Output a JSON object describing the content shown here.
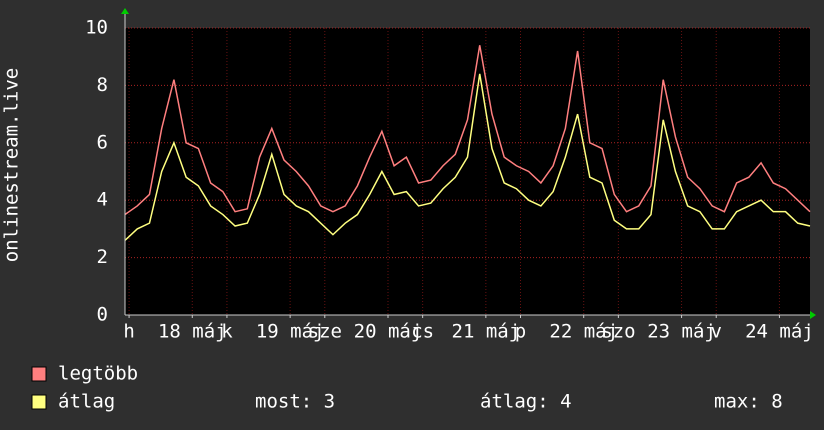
{
  "chart_data": {
    "type": "line",
    "ylabel": "onlinestream.live",
    "x": [
      0,
      3,
      6,
      9,
      12,
      15,
      18,
      21,
      24,
      27,
      30,
      33,
      36,
      39,
      42,
      45,
      48,
      51,
      54,
      57,
      60,
      63,
      66,
      69,
      72,
      75,
      78,
      81,
      84,
      87,
      90,
      93,
      96,
      99,
      102,
      105,
      108,
      111,
      114,
      117,
      120,
      123,
      126,
      129,
      132,
      135,
      138,
      141,
      144,
      147,
      150,
      153,
      156,
      159,
      162,
      165,
      168
    ],
    "series": [
      {
        "name": "legtöbb",
        "color": "#ff7f7f",
        "values": [
          3.5,
          3.8,
          4.2,
          6.5,
          8.2,
          6.0,
          5.8,
          4.6,
          4.3,
          3.6,
          3.7,
          5.5,
          6.5,
          5.4,
          5.0,
          4.5,
          3.8,
          3.6,
          3.8,
          4.5,
          5.5,
          6.4,
          5.2,
          5.5,
          4.6,
          4.7,
          5.2,
          5.6,
          6.8,
          9.4,
          7.0,
          5.5,
          5.2,
          5.0,
          4.6,
          5.2,
          6.5,
          9.2,
          6.0,
          5.8,
          4.2,
          3.6,
          3.8,
          4.5,
          8.2,
          6.2,
          4.8,
          4.4,
          3.8,
          3.6,
          4.6,
          4.8,
          5.3,
          4.6,
          4.4,
          4.0,
          3.6
        ]
      },
      {
        "name": "átlag",
        "color": "#ffff80",
        "values": [
          2.6,
          3.0,
          3.2,
          5.0,
          6.0,
          4.8,
          4.5,
          3.8,
          3.5,
          3.1,
          3.2,
          4.2,
          5.6,
          4.2,
          3.8,
          3.6,
          3.2,
          2.8,
          3.2,
          3.5,
          4.2,
          5.0,
          4.2,
          4.3,
          3.8,
          3.9,
          4.4,
          4.8,
          5.5,
          8.4,
          5.8,
          4.6,
          4.4,
          4.0,
          3.8,
          4.3,
          5.5,
          7.0,
          4.8,
          4.6,
          3.3,
          3.0,
          3.0,
          3.5,
          6.8,
          5.0,
          3.8,
          3.6,
          3.0,
          3.0,
          3.6,
          3.8,
          4.0,
          3.6,
          3.6,
          3.2,
          3.1
        ]
      }
    ],
    "xlim": [
      0,
      168
    ],
    "xticks": [
      {
        "value": 1,
        "label": "h"
      },
      {
        "value": 16.5,
        "label": "18 máj"
      },
      {
        "value": 25,
        "label": "k"
      },
      {
        "value": 40.5,
        "label": "19 máj"
      },
      {
        "value": 49,
        "label": "sze"
      },
      {
        "value": 64.5,
        "label": "20 máj"
      },
      {
        "value": 73,
        "label": "cs"
      },
      {
        "value": 88.5,
        "label": "21 máj"
      },
      {
        "value": 97,
        "label": "p"
      },
      {
        "value": 112.5,
        "label": "22 máj"
      },
      {
        "value": 121,
        "label": "szo"
      },
      {
        "value": 136.5,
        "label": "23 máj"
      },
      {
        "value": 145,
        "label": "v"
      },
      {
        "value": 160.5,
        "label": "24 máj"
      }
    ],
    "ylim": [
      0,
      10
    ],
    "yticks": [
      0,
      2,
      4,
      6,
      8,
      10
    ],
    "grid": true,
    "stats": [
      "most: 3",
      "átlag: 4",
      "max: 8"
    ]
  }
}
